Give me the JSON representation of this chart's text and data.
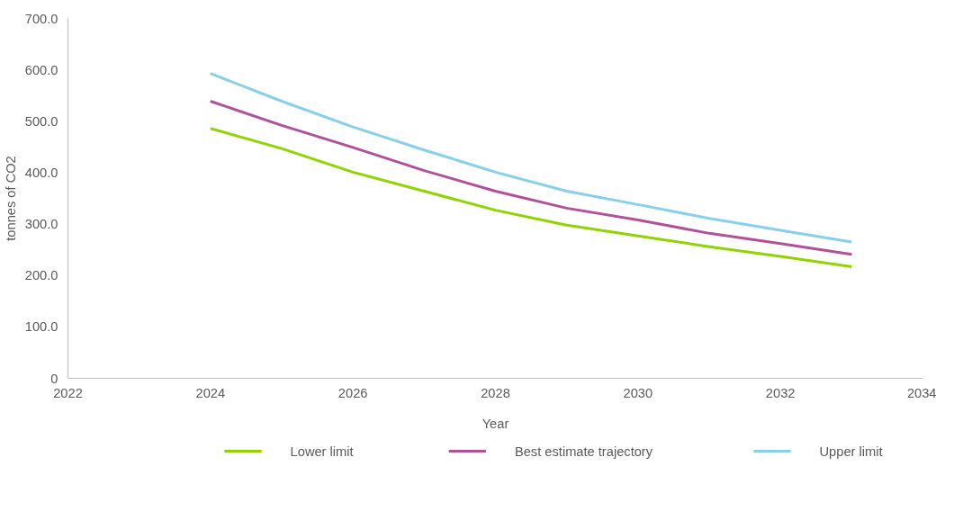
{
  "chart_data": {
    "type": "line",
    "xlabel": "Year",
    "ylabel": "tonnes of CO2",
    "x": [
      2024,
      2025,
      2026,
      2027,
      2028,
      2029,
      2030,
      2031,
      2032,
      2033
    ],
    "series": [
      {
        "name": "Lower limit",
        "color": "#8fd400",
        "values": [
          486,
          447,
          401,
          364,
          327,
          298,
          277,
          256,
          237,
          217
        ]
      },
      {
        "name": "Best estimate trajectory",
        "color": "#b0529b",
        "values": [
          539,
          492,
          449,
          404,
          364,
          331,
          308,
          282,
          262,
          241
        ]
      },
      {
        "name": "Upper limit",
        "color": "#87cfeb",
        "values": [
          593,
          539,
          489,
          444,
          401,
          364,
          338,
          311,
          288,
          265
        ]
      }
    ],
    "xlim": [
      2022,
      2034
    ],
    "xticks": [
      2022,
      2024,
      2026,
      2028,
      2030,
      2032,
      2034
    ],
    "ylim": [
      0,
      700
    ],
    "yticks": [
      {
        "value": 0,
        "label": "0"
      },
      {
        "value": 100,
        "label": "100.0"
      },
      {
        "value": 200,
        "label": "200.0"
      },
      {
        "value": 300,
        "label": "300.0"
      },
      {
        "value": 400,
        "label": "400.0"
      },
      {
        "value": 500,
        "label": "500.0"
      },
      {
        "value": 600,
        "label": "600.0"
      },
      {
        "value": 700,
        "label": "700.0"
      }
    ],
    "grid": false,
    "legend": "bottom",
    "marker": "none",
    "line_style": "solid"
  }
}
